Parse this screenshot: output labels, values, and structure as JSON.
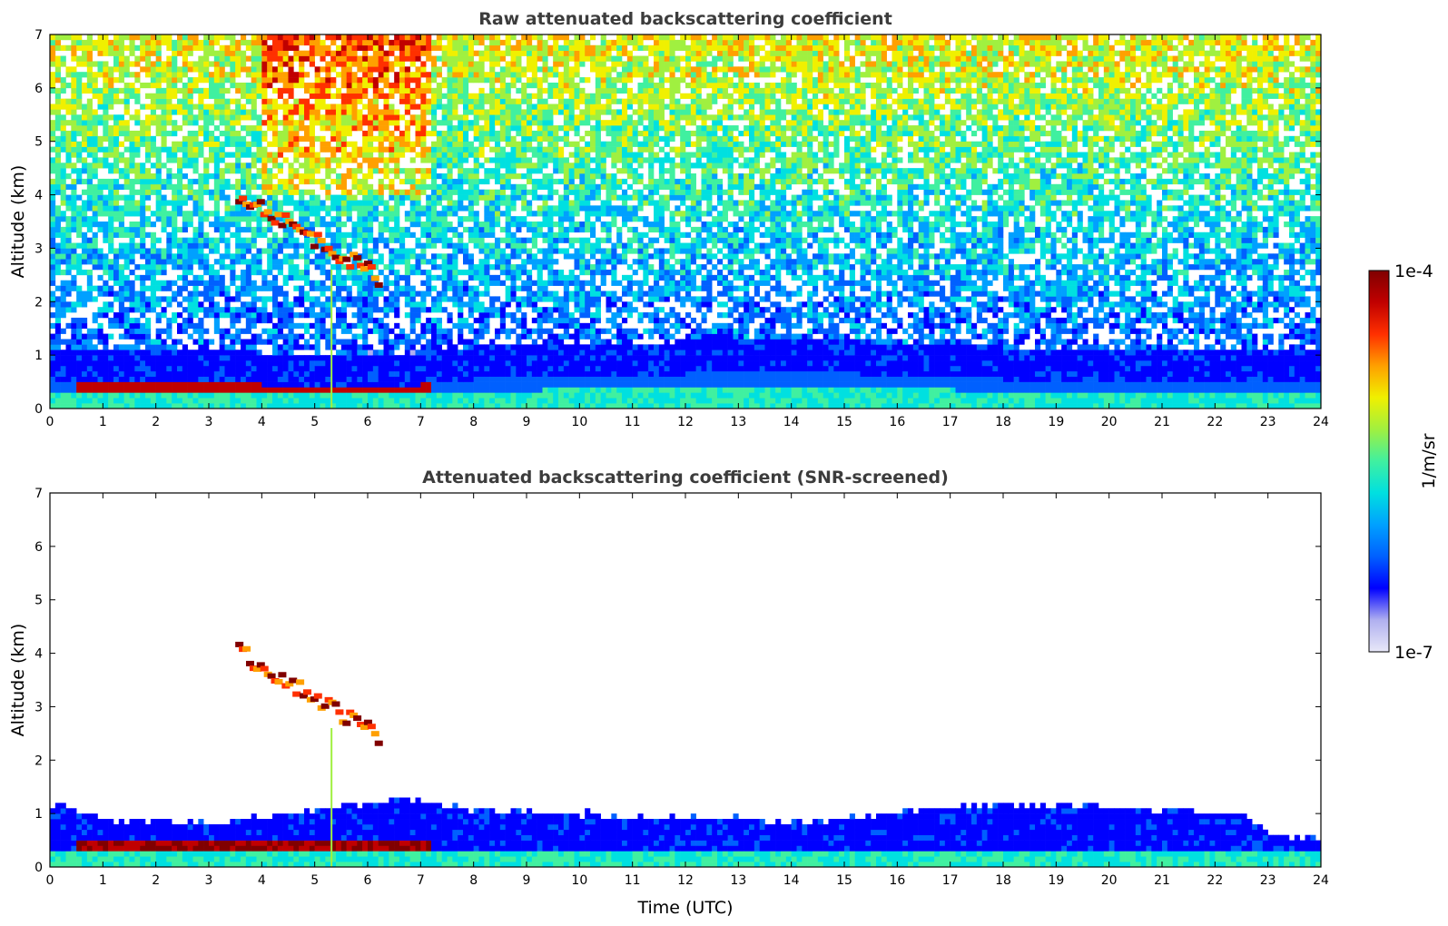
{
  "chart_data": [
    {
      "type": "heatmap",
      "title": "Raw attenuated backscattering coefficient",
      "xlabel": "",
      "ylabel": "Altitude (km)",
      "xlim": [
        0,
        24
      ],
      "ylim": [
        0,
        7
      ],
      "x_ticks": [
        "0",
        "1",
        "2",
        "3",
        "4",
        "5",
        "6",
        "7",
        "8",
        "9",
        "10",
        "11",
        "12",
        "13",
        "14",
        "15",
        "16",
        "17",
        "18",
        "19",
        "20",
        "21",
        "22",
        "23",
        "24"
      ],
      "y_ticks": [
        "0",
        "1",
        "2",
        "3",
        "4",
        "5",
        "6",
        "7"
      ],
      "features": {
        "boundary_layer_top_km": [
          {
            "t": 0,
            "h": 0.5
          },
          {
            "t": 1,
            "h": 0.5
          },
          {
            "t": 4,
            "h": 0.45
          },
          {
            "t": 7,
            "h": 0.45
          },
          {
            "t": 8,
            "h": 0.55
          },
          {
            "t": 10,
            "h": 0.6
          },
          {
            "t": 14,
            "h": 0.7
          },
          {
            "t": 18,
            "h": 0.55
          },
          {
            "t": 22,
            "h": 0.5
          },
          {
            "t": 24,
            "h": 0.45
          }
        ],
        "cloud_layer": {
          "t_start": 3.5,
          "t_end": 6.2,
          "altitude_km": [
            4.0,
            2.4
          ]
        },
        "high_noise_window": {
          "t_start": 4.0,
          "t_end": 7.2
        }
      }
    },
    {
      "type": "heatmap",
      "title": "Attenuated backscattering coefficient (SNR-screened)",
      "xlabel": "Time (UTC)",
      "ylabel": "Altitude (km)",
      "xlim": [
        0,
        24
      ],
      "ylim": [
        0,
        7
      ],
      "x_ticks": [
        "0",
        "1",
        "2",
        "3",
        "4",
        "5",
        "6",
        "7",
        "8",
        "9",
        "10",
        "11",
        "12",
        "13",
        "14",
        "15",
        "16",
        "17",
        "18",
        "19",
        "20",
        "21",
        "22",
        "23",
        "24"
      ],
      "y_ticks": [
        "0",
        "1",
        "2",
        "3",
        "4",
        "5",
        "6",
        "7"
      ],
      "features": {
        "aerosol_layer_top_km": [
          {
            "t": 0,
            "h": 1.2
          },
          {
            "t": 1,
            "h": 0.9
          },
          {
            "t": 3,
            "h": 0.8
          },
          {
            "t": 6.8,
            "h": 1.3
          },
          {
            "t": 7.4,
            "h": 1.1
          },
          {
            "t": 10,
            "h": 1.0
          },
          {
            "t": 14,
            "h": 0.85
          },
          {
            "t": 18,
            "h": 1.2
          },
          {
            "t": 22.6,
            "h": 1.0
          },
          {
            "t": 23,
            "h": 0.6
          },
          {
            "t": 24,
            "h": 0.55
          }
        ],
        "cloud_layer": {
          "t_start": 3.5,
          "t_end": 6.2,
          "altitude_km": [
            4.0,
            2.4
          ]
        }
      }
    }
  ],
  "colorbar": {
    "min_label": "1e-7",
    "max_label": "1e-4",
    "label": "1/m/sr",
    "colormap": [
      "#e8e8f8",
      "#b0b0f0",
      "#0000ff",
      "#0060ff",
      "#00a0ff",
      "#00e0e0",
      "#40f0a0",
      "#a0f040",
      "#f0f000",
      "#ffa000",
      "#ff3000",
      "#c00000",
      "#800000"
    ]
  }
}
